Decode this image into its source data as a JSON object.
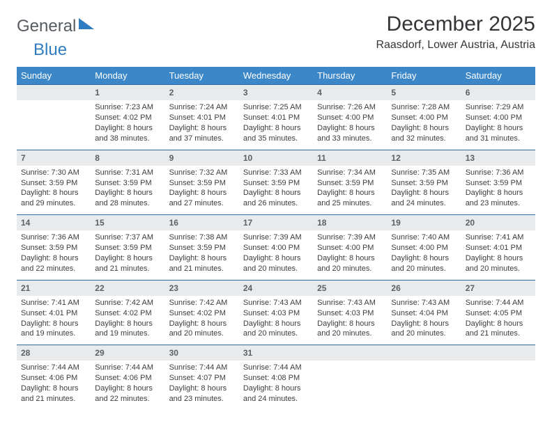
{
  "logo": {
    "part1": "General",
    "part2": "Blue"
  },
  "title": "December 2025",
  "location": "Raasdorf, Lower Austria, Austria",
  "colors": {
    "header_bg": "#3b87c8",
    "header_text": "#ffffff",
    "daynum_bg": "#e9eaec",
    "daynum_border": "#2d6aa3",
    "daynum_text": "#5c6064",
    "body_text": "#3a3d40",
    "logo_gray": "#555b60",
    "logo_blue": "#2f7dc0",
    "page_bg": "#ffffff"
  },
  "fonts": {
    "title_size_pt": 22,
    "subtitle_size_pt": 12,
    "header_size_pt": 10,
    "daynum_size_pt": 9,
    "cell_size_pt": 8,
    "logo_size_pt": 18
  },
  "layout": {
    "columns": 7,
    "rows": 5
  },
  "day_headers": [
    "Sunday",
    "Monday",
    "Tuesday",
    "Wednesday",
    "Thursday",
    "Friday",
    "Saturday"
  ],
  "weeks": [
    [
      {
        "day": "",
        "lines": []
      },
      {
        "day": "1",
        "lines": [
          "Sunrise: 7:23 AM",
          "Sunset: 4:02 PM",
          "Daylight: 8 hours",
          "and 38 minutes."
        ]
      },
      {
        "day": "2",
        "lines": [
          "Sunrise: 7:24 AM",
          "Sunset: 4:01 PM",
          "Daylight: 8 hours",
          "and 37 minutes."
        ]
      },
      {
        "day": "3",
        "lines": [
          "Sunrise: 7:25 AM",
          "Sunset: 4:01 PM",
          "Daylight: 8 hours",
          "and 35 minutes."
        ]
      },
      {
        "day": "4",
        "lines": [
          "Sunrise: 7:26 AM",
          "Sunset: 4:00 PM",
          "Daylight: 8 hours",
          "and 33 minutes."
        ]
      },
      {
        "day": "5",
        "lines": [
          "Sunrise: 7:28 AM",
          "Sunset: 4:00 PM",
          "Daylight: 8 hours",
          "and 32 minutes."
        ]
      },
      {
        "day": "6",
        "lines": [
          "Sunrise: 7:29 AM",
          "Sunset: 4:00 PM",
          "Daylight: 8 hours",
          "and 31 minutes."
        ]
      }
    ],
    [
      {
        "day": "7",
        "lines": [
          "Sunrise: 7:30 AM",
          "Sunset: 3:59 PM",
          "Daylight: 8 hours",
          "and 29 minutes."
        ]
      },
      {
        "day": "8",
        "lines": [
          "Sunrise: 7:31 AM",
          "Sunset: 3:59 PM",
          "Daylight: 8 hours",
          "and 28 minutes."
        ]
      },
      {
        "day": "9",
        "lines": [
          "Sunrise: 7:32 AM",
          "Sunset: 3:59 PM",
          "Daylight: 8 hours",
          "and 27 minutes."
        ]
      },
      {
        "day": "10",
        "lines": [
          "Sunrise: 7:33 AM",
          "Sunset: 3:59 PM",
          "Daylight: 8 hours",
          "and 26 minutes."
        ]
      },
      {
        "day": "11",
        "lines": [
          "Sunrise: 7:34 AM",
          "Sunset: 3:59 PM",
          "Daylight: 8 hours",
          "and 25 minutes."
        ]
      },
      {
        "day": "12",
        "lines": [
          "Sunrise: 7:35 AM",
          "Sunset: 3:59 PM",
          "Daylight: 8 hours",
          "and 24 minutes."
        ]
      },
      {
        "day": "13",
        "lines": [
          "Sunrise: 7:36 AM",
          "Sunset: 3:59 PM",
          "Daylight: 8 hours",
          "and 23 minutes."
        ]
      }
    ],
    [
      {
        "day": "14",
        "lines": [
          "Sunrise: 7:36 AM",
          "Sunset: 3:59 PM",
          "Daylight: 8 hours",
          "and 22 minutes."
        ]
      },
      {
        "day": "15",
        "lines": [
          "Sunrise: 7:37 AM",
          "Sunset: 3:59 PM",
          "Daylight: 8 hours",
          "and 21 minutes."
        ]
      },
      {
        "day": "16",
        "lines": [
          "Sunrise: 7:38 AM",
          "Sunset: 3:59 PM",
          "Daylight: 8 hours",
          "and 21 minutes."
        ]
      },
      {
        "day": "17",
        "lines": [
          "Sunrise: 7:39 AM",
          "Sunset: 4:00 PM",
          "Daylight: 8 hours",
          "and 20 minutes."
        ]
      },
      {
        "day": "18",
        "lines": [
          "Sunrise: 7:39 AM",
          "Sunset: 4:00 PM",
          "Daylight: 8 hours",
          "and 20 minutes."
        ]
      },
      {
        "day": "19",
        "lines": [
          "Sunrise: 7:40 AM",
          "Sunset: 4:00 PM",
          "Daylight: 8 hours",
          "and 20 minutes."
        ]
      },
      {
        "day": "20",
        "lines": [
          "Sunrise: 7:41 AM",
          "Sunset: 4:01 PM",
          "Daylight: 8 hours",
          "and 20 minutes."
        ]
      }
    ],
    [
      {
        "day": "21",
        "lines": [
          "Sunrise: 7:41 AM",
          "Sunset: 4:01 PM",
          "Daylight: 8 hours",
          "and 19 minutes."
        ]
      },
      {
        "day": "22",
        "lines": [
          "Sunrise: 7:42 AM",
          "Sunset: 4:02 PM",
          "Daylight: 8 hours",
          "and 19 minutes."
        ]
      },
      {
        "day": "23",
        "lines": [
          "Sunrise: 7:42 AM",
          "Sunset: 4:02 PM",
          "Daylight: 8 hours",
          "and 20 minutes."
        ]
      },
      {
        "day": "24",
        "lines": [
          "Sunrise: 7:43 AM",
          "Sunset: 4:03 PM",
          "Daylight: 8 hours",
          "and 20 minutes."
        ]
      },
      {
        "day": "25",
        "lines": [
          "Sunrise: 7:43 AM",
          "Sunset: 4:03 PM",
          "Daylight: 8 hours",
          "and 20 minutes."
        ]
      },
      {
        "day": "26",
        "lines": [
          "Sunrise: 7:43 AM",
          "Sunset: 4:04 PM",
          "Daylight: 8 hours",
          "and 20 minutes."
        ]
      },
      {
        "day": "27",
        "lines": [
          "Sunrise: 7:44 AM",
          "Sunset: 4:05 PM",
          "Daylight: 8 hours",
          "and 21 minutes."
        ]
      }
    ],
    [
      {
        "day": "28",
        "lines": [
          "Sunrise: 7:44 AM",
          "Sunset: 4:06 PM",
          "Daylight: 8 hours",
          "and 21 minutes."
        ]
      },
      {
        "day": "29",
        "lines": [
          "Sunrise: 7:44 AM",
          "Sunset: 4:06 PM",
          "Daylight: 8 hours",
          "and 22 minutes."
        ]
      },
      {
        "day": "30",
        "lines": [
          "Sunrise: 7:44 AM",
          "Sunset: 4:07 PM",
          "Daylight: 8 hours",
          "and 23 minutes."
        ]
      },
      {
        "day": "31",
        "lines": [
          "Sunrise: 7:44 AM",
          "Sunset: 4:08 PM",
          "Daylight: 8 hours",
          "and 24 minutes."
        ]
      },
      {
        "day": "",
        "lines": []
      },
      {
        "day": "",
        "lines": []
      },
      {
        "day": "",
        "lines": []
      }
    ]
  ]
}
